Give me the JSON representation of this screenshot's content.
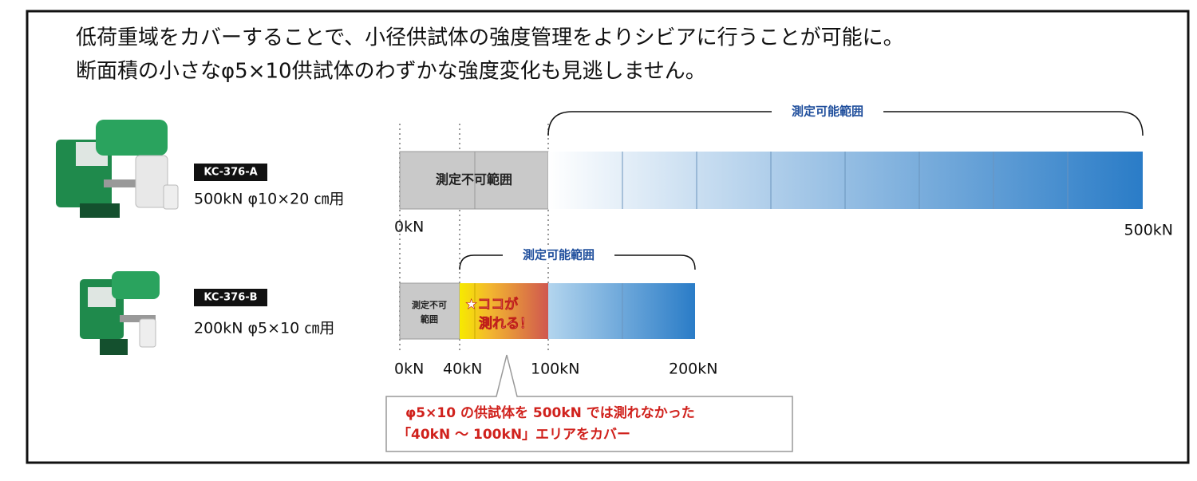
{
  "headline": {
    "lines": [
      "低荷重域をカバーすることで、小径供試体の強度管理をよりシビアに行うことが可能に。",
      "断面積の小さなφ5×10供試体のわずかな強度変化も見逃しません。"
    ]
  },
  "products": [
    {
      "model": "KC-376-A",
      "spec": "500kN φ10×20 ㎝用",
      "range_label": "測定可能範囲",
      "unmeasurable_lines": [
        "測定不可範囲"
      ],
      "axis_labels": [
        "0kN",
        "500kN"
      ]
    },
    {
      "model": "KC-376-B",
      "spec": "200kN φ5×10 ㎝用",
      "range_label": "測定可能範囲",
      "unmeasurable_lines": [
        "測定不可",
        "範囲"
      ],
      "highlight_lines": [
        "★ココが",
        "測れる！"
      ],
      "axis_labels": [
        "0kN",
        "40kN",
        "100kN",
        "200kN"
      ]
    }
  ],
  "callout": {
    "lines": [
      "φ5×10 の供試体を 500kN では測れなかった",
      "「40kN ～ 100kN」エリアをカバー"
    ]
  }
}
